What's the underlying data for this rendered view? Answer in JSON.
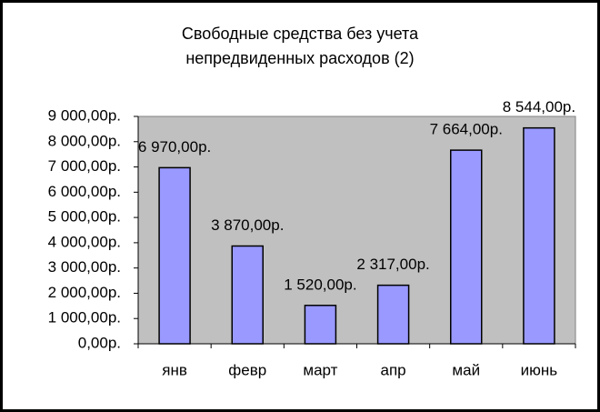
{
  "chart_data": {
    "type": "bar",
    "title": "Свободные средства без учета непредвиденных расходов (2)",
    "categories": [
      "янв",
      "февр",
      "март",
      "апр",
      "май",
      "июнь"
    ],
    "values": [
      6970,
      3870,
      1520,
      2317,
      7664,
      8544
    ],
    "value_labels": [
      "6 970,00р.",
      "3 870,00р.",
      "1 520,00р.",
      "2 317,00р.",
      "7 664,00р.",
      "8 544,00р."
    ],
    "color": "#9999ff",
    "ylim": [
      0,
      9000
    ],
    "yticks": [
      {
        "value": 0,
        "label": "0,00р."
      },
      {
        "value": 1000,
        "label": "1 000,00р."
      },
      {
        "value": 2000,
        "label": "2 000,00р."
      },
      {
        "value": 3000,
        "label": "3 000,00р."
      },
      {
        "value": 4000,
        "label": "4 000,00р."
      },
      {
        "value": 5000,
        "label": "5 000,00р."
      },
      {
        "value": 6000,
        "label": "6 000,00р."
      },
      {
        "value": 7000,
        "label": "7 000,00р."
      },
      {
        "value": 8000,
        "label": "8 000,00р."
      },
      {
        "value": 9000,
        "label": "9 000,00р."
      }
    ],
    "grid": false
  }
}
